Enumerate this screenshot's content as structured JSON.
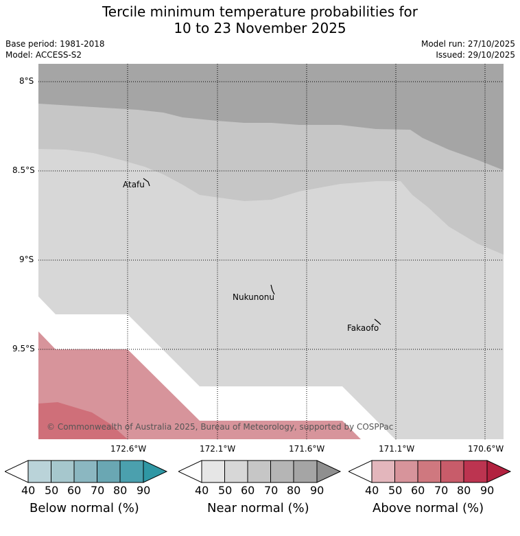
{
  "title": {
    "line1": "Tercile minimum temperature probabilities for",
    "line2": "10 to 23 November 2025"
  },
  "meta": {
    "base_period": "Base period: 1981-2018",
    "model": "Model: ACCESS-S2",
    "model_run": "Model run: 27/10/2025",
    "issued": "Issued: 29/10/2025"
  },
  "map": {
    "lat_labels": [
      "8°S",
      "8.5°S",
      "9°S",
      "9.5°S"
    ],
    "lon_labels": [
      "172.6°W",
      "172.1°W",
      "171.6°W",
      "171.1°W",
      "170.6°W"
    ],
    "places": [
      {
        "name": "Atafu"
      },
      {
        "name": "Nukunonu"
      },
      {
        "name": "Fakaofo"
      }
    ],
    "copyright": "© Commonwealth of Australia 2025, Bureau of Meteorology, supported by COSPPac"
  },
  "colorbars": [
    {
      "title": "Below normal (%)",
      "ticks": [
        "40",
        "50",
        "60",
        "70",
        "80",
        "90"
      ],
      "colors": [
        "#ffffff",
        "#bad3d9",
        "#a6c7cd",
        "#8bb7c1",
        "#6aa7b3",
        "#4ba0ae",
        "#2f97a4"
      ]
    },
    {
      "title": "Near normal (%)",
      "ticks": [
        "40",
        "50",
        "60",
        "70",
        "80",
        "90"
      ],
      "colors": [
        "#ffffff",
        "#e6e6e6",
        "#d7d7d7",
        "#c6c6c6",
        "#b5b5b5",
        "#a5a5a5",
        "#8f8f8f"
      ]
    },
    {
      "title": "Above normal (%)",
      "ticks": [
        "40",
        "50",
        "60",
        "70",
        "80",
        "90"
      ],
      "colors": [
        "#ffffff",
        "#e3b6bc",
        "#d7949b",
        "#cf787f",
        "#c85c6a",
        "#bc3450",
        "#b2213f"
      ]
    }
  ]
}
